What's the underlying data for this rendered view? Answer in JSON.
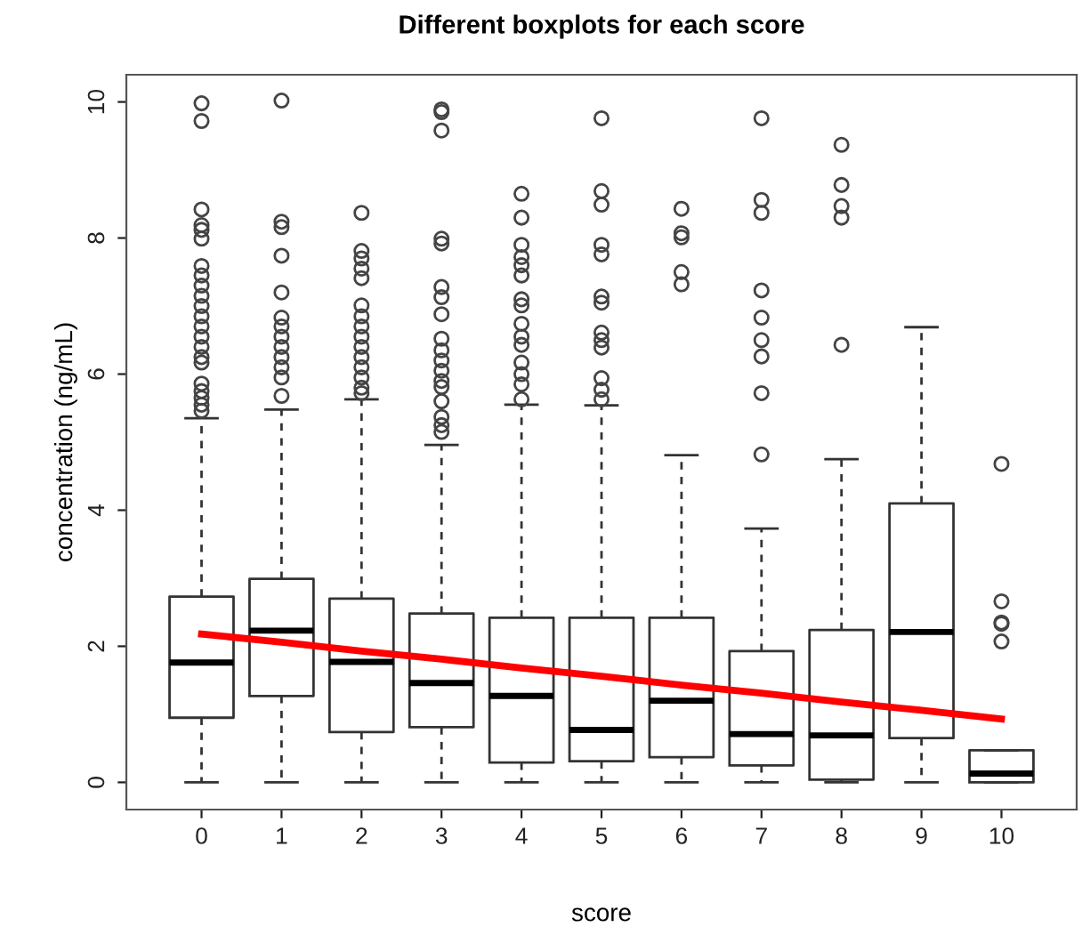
{
  "chart_data": {
    "type": "box",
    "title": "Different boxplots for each score",
    "xlabel": "score",
    "ylabel": "concentration (ng/mL)",
    "categories": [
      "0",
      "1",
      "2",
      "3",
      "4",
      "5",
      "6",
      "7",
      "8",
      "9",
      "10"
    ],
    "ylim": [
      -0.4,
      10.4
    ],
    "yticks": [
      0,
      2,
      4,
      6,
      8,
      10
    ],
    "grid": false,
    "legend": false,
    "boxes": [
      {
        "low": 0,
        "q1": 0.95,
        "median": 1.76,
        "q3": 2.73,
        "high": 5.35,
        "outliers": [
          9.98,
          9.72,
          8.42,
          8.19,
          8.12,
          7.99,
          7.59,
          7.45,
          7.3,
          7.15,
          7.0,
          6.85,
          6.7,
          6.55,
          6.4,
          6.25,
          6.17,
          5.86,
          5.75,
          5.65,
          5.55,
          5.46
        ]
      },
      {
        "low": 0,
        "q1": 1.27,
        "median": 2.23,
        "q3": 2.99,
        "high": 5.48,
        "outliers": [
          10.02,
          8.24,
          8.16,
          7.74,
          7.2,
          6.83,
          6.7,
          6.55,
          6.4,
          6.25,
          6.1,
          5.95,
          5.68
        ]
      },
      {
        "low": 0,
        "q1": 0.74,
        "median": 1.77,
        "q3": 2.7,
        "high": 5.63,
        "outliers": [
          8.37,
          7.81,
          7.7,
          7.55,
          7.41,
          7.01,
          6.85,
          6.7,
          6.55,
          6.4,
          6.25,
          6.1,
          5.95,
          5.8,
          5.72
        ]
      },
      {
        "low": 0,
        "q1": 0.81,
        "median": 1.46,
        "q3": 2.48,
        "high": 4.96,
        "outliers": [
          9.89,
          9.85,
          9.58,
          7.99,
          7.92,
          7.28,
          7.13,
          6.88,
          6.52,
          6.35,
          6.2,
          6.05,
          5.9,
          5.81,
          5.6,
          5.37,
          5.25,
          5.15
        ]
      },
      {
        "low": 0,
        "q1": 0.29,
        "median": 1.27,
        "q3": 2.42,
        "high": 5.55,
        "outliers": [
          8.65,
          8.3,
          7.9,
          7.72,
          7.6,
          7.45,
          7.1,
          7.01,
          6.74,
          6.55,
          6.43,
          6.17,
          6.0,
          5.85,
          5.63
        ]
      },
      {
        "low": 0,
        "q1": 0.31,
        "median": 0.77,
        "q3": 2.42,
        "high": 5.54,
        "outliers": [
          9.76,
          8.69,
          8.49,
          7.9,
          7.76,
          7.14,
          7.05,
          6.61,
          6.5,
          6.39,
          5.94,
          5.77,
          5.63
        ]
      },
      {
        "low": 0,
        "q1": 0.37,
        "median": 1.2,
        "q3": 2.42,
        "high": 4.81,
        "outliers": [
          8.43,
          8.07,
          8.01,
          7.5,
          7.32
        ]
      },
      {
        "low": 0,
        "q1": 0.25,
        "median": 0.71,
        "q3": 1.93,
        "high": 3.73,
        "outliers": [
          9.76,
          8.56,
          8.37,
          7.23,
          6.83,
          6.5,
          6.26,
          5.72,
          4.82
        ]
      },
      {
        "low": 0,
        "q1": 0.04,
        "median": 0.69,
        "q3": 2.24,
        "high": 4.75,
        "outliers": [
          9.37,
          8.78,
          8.47,
          8.3,
          6.43
        ]
      },
      {
        "low": 0,
        "q1": 0.65,
        "median": 2.21,
        "q3": 4.1,
        "high": 6.69
      },
      {
        "low": 0,
        "q1": 0,
        "median": 0.13,
        "q3": 0.47,
        "high": 0.47,
        "outliers": [
          4.68,
          2.66,
          2.35,
          2.33,
          2.07
        ]
      }
    ],
    "series": [
      {
        "type": "line",
        "values": [
          2.18,
          2.06,
          1.93,
          1.81,
          1.68,
          1.56,
          1.43,
          1.31,
          1.18,
          1.06,
          0.93
        ],
        "color": "#ff0000",
        "line_style": "solid",
        "marker": "none"
      }
    ]
  }
}
